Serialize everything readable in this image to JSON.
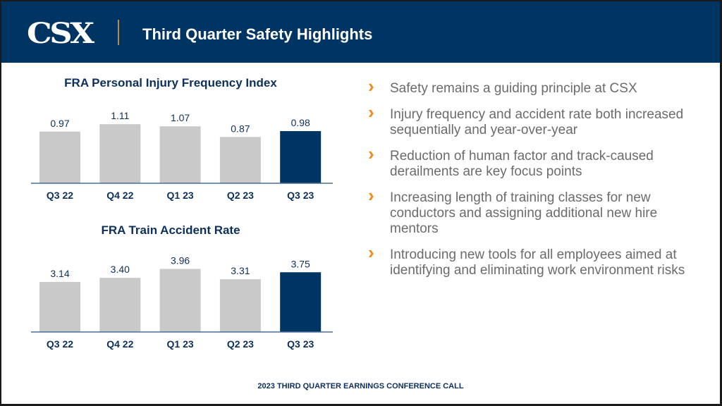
{
  "header": {
    "logo_text": "CSX",
    "title": "Third Quarter Safety Highlights"
  },
  "bullets": [
    {
      "icon": "chevron-right-icon",
      "text": "Safety remains a guiding principle at CSX"
    },
    {
      "icon": "chevron-right-icon",
      "text": "Injury frequency and accident rate both increased sequentially and year-over-year"
    },
    {
      "icon": "chevron-right-icon",
      "text": "Reduction of human factor and track-caused derailments are key focus points"
    },
    {
      "icon": "chevron-right-icon",
      "text": "Increasing length of training classes for new conductors and assigning additional new hire mentors"
    },
    {
      "icon": "chevron-right-icon",
      "text": "Introducing new tools for all employees aimed at identifying and eliminating work environment risks"
    }
  ],
  "footer": {
    "text": "2023 THIRD QUARTER EARNINGS CONFERENCE CALL"
  },
  "colors": {
    "header_bg": "#003462",
    "accent_divider": "#b58a4c",
    "bullet_chevron": "#f08a1c",
    "bar_default": "#c9c9c9",
    "bar_highlight": "#003462",
    "axis_line": "#4a6f96",
    "label_text": "#0d2f5c"
  },
  "chart_data": [
    {
      "type": "bar",
      "title": "FRA Personal Injury Frequency Index",
      "categories": [
        "Q3 22",
        "Q4 22",
        "Q1 23",
        "Q2 23",
        "Q3 23"
      ],
      "values": [
        0.97,
        1.11,
        1.07,
        0.87,
        0.98
      ],
      "value_labels": [
        "0.97",
        "1.11",
        "1.07",
        "0.87",
        "0.98"
      ],
      "highlight_index": 4,
      "xlabel": "",
      "ylabel": "",
      "ylim": [
        0,
        1.2
      ],
      "grid": false,
      "legend": "none"
    },
    {
      "type": "bar",
      "title": "FRA Train Accident Rate",
      "categories": [
        "Q3 22",
        "Q4 22",
        "Q1 23",
        "Q2 23",
        "Q3 23"
      ],
      "values": [
        3.14,
        3.4,
        3.96,
        3.31,
        3.75
      ],
      "value_labels": [
        "3.14",
        "3.40",
        "3.96",
        "3.31",
        "3.75"
      ],
      "highlight_index": 4,
      "xlabel": "",
      "ylabel": "",
      "ylim": [
        0,
        4.2
      ],
      "grid": false,
      "legend": "none"
    }
  ]
}
